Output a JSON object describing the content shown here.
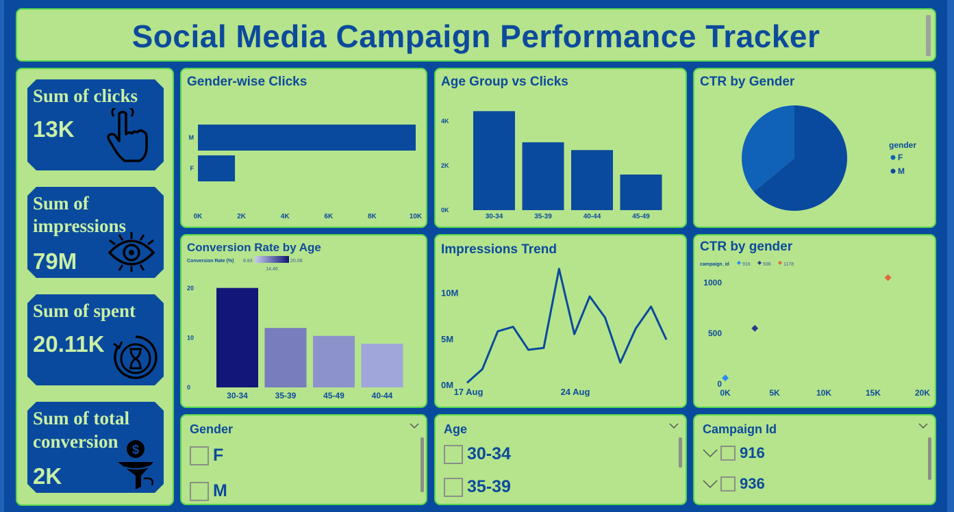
{
  "title": "Social Media Campaign Performance Tracker",
  "kpis": [
    {
      "label_lines": [
        "Sum of clicks"
      ],
      "value": "13K",
      "icon": "hand-pointer-icon"
    },
    {
      "label_lines": [
        "Sum of",
        "impressions"
      ],
      "value": "79M",
      "icon": "eye-icon"
    },
    {
      "label_lines": [
        "Sum of spent"
      ],
      "value": "20.11K",
      "icon": "hourglass-timer-icon"
    },
    {
      "label_lines": [
        "Sum of total",
        "conversion"
      ],
      "value": "2K",
      "icon": "dollar-funnel-icon"
    }
  ],
  "colors": {
    "panel_bg": "#b5e48c",
    "panel_border": "#56d64e",
    "page_bg": "#0a4a9e",
    "primary": "#0d4a9c",
    "pie_f": "#0f62b8",
    "pie_m": "#0a4a9e"
  },
  "chart_data": [
    {
      "id": "gender-clicks",
      "type": "bar",
      "orientation": "horizontal",
      "title": "Gender-wise Clicks",
      "categories": [
        "M",
        "F"
      ],
      "values": [
        10000,
        1700
      ],
      "xlim": [
        0,
        10000
      ],
      "ticks": [
        "0K",
        "2K",
        "4K",
        "6K",
        "8K",
        "10K"
      ],
      "tick_values": [
        0,
        2000,
        4000,
        6000,
        8000,
        10000
      ]
    },
    {
      "id": "age-clicks",
      "type": "bar",
      "title": "Age Group vs Clicks",
      "categories": [
        "30-34",
        "35-39",
        "40-44",
        "45-49"
      ],
      "values": [
        4450,
        3050,
        2700,
        1600
      ],
      "ylim": [
        0,
        4800
      ],
      "ticks": [
        "0K",
        "2K",
        "4K"
      ],
      "tick_values": [
        0,
        2000,
        4000
      ]
    },
    {
      "id": "ctr-gender",
      "type": "pie",
      "title": "CTR by Gender",
      "legend_title": "gender",
      "labels": [
        "F",
        "M"
      ],
      "values": [
        36,
        64
      ]
    },
    {
      "id": "conversion-age",
      "type": "bar",
      "title": "Conversion Rate by Age",
      "legend_label": "Conversion Rate (%)",
      "legend_min": "8.83",
      "legend_mid": "14.46",
      "legend_max": "20.08",
      "categories": [
        "30-34",
        "35-39",
        "45-49",
        "40-44"
      ],
      "values": [
        20.08,
        12.0,
        10.4,
        8.83
      ],
      "ylim": [
        0,
        21
      ],
      "ticks": [
        "0",
        "10",
        "20"
      ],
      "tick_values": [
        0,
        10,
        20
      ]
    },
    {
      "id": "impressions-trend",
      "type": "line",
      "title": "Impressions Trend",
      "x_ticks": [
        "17 Aug",
        "24 Aug"
      ],
      "values": [
        0.2,
        1.7,
        5.8,
        6.3,
        3.8,
        4.0,
        12.6,
        5.5,
        9.6,
        7.3,
        2.4,
        6.1,
        8.5,
        4.9
      ],
      "ylim": [
        0,
        14
      ],
      "ticks": [
        "0M",
        "5M",
        "10M"
      ],
      "tick_values": [
        0,
        5,
        10
      ]
    },
    {
      "id": "ctr-gender-scatter",
      "type": "scatter",
      "title": "CTR by gender",
      "legend_title": "campaign_id",
      "series": [
        {
          "name": "916",
          "x": 0,
          "y": 60,
          "color": "#2a8cf0"
        },
        {
          "name": "936",
          "x": 3000,
          "y": 550,
          "color": "#2d3a8c"
        },
        {
          "name": "1178",
          "x": 16500,
          "y": 1050,
          "color": "#e06b3a"
        }
      ],
      "xlim": [
        0,
        20000
      ],
      "ylim": [
        0,
        1250
      ],
      "x_ticks": [
        "0K",
        "5K",
        "10K",
        "15K",
        "20K"
      ],
      "x_tick_values": [
        0,
        5000,
        10000,
        15000,
        20000
      ],
      "y_ticks": [
        "0",
        "500",
        "1000"
      ],
      "y_tick_values": [
        0,
        500,
        1000
      ]
    }
  ],
  "slicers": [
    {
      "title": "Gender",
      "items": [
        "F",
        "M"
      ],
      "has_expand": false
    },
    {
      "title": "Age",
      "items": [
        "30-34",
        "35-39"
      ],
      "has_expand": false
    },
    {
      "title": "Campaign Id",
      "items": [
        "916",
        "936"
      ],
      "has_expand": true
    }
  ]
}
